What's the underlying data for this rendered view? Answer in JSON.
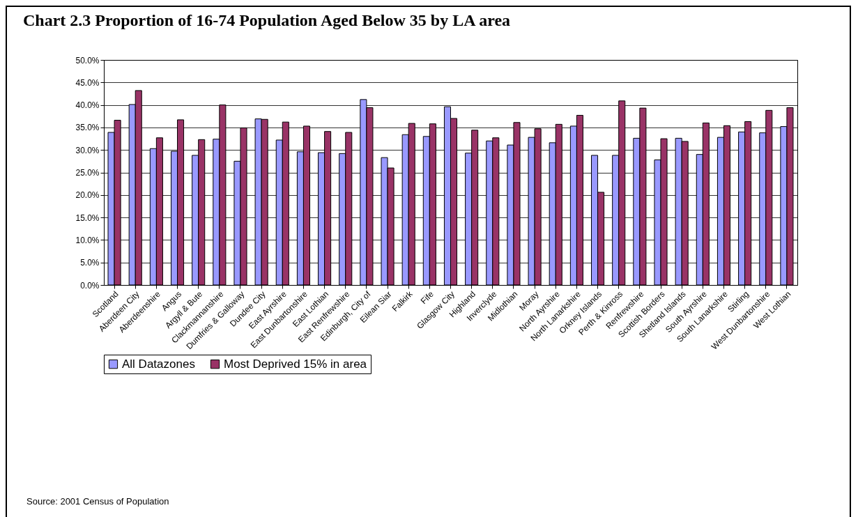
{
  "chart_data": {
    "type": "bar",
    "title": "Chart 2.3 Proportion of 16-74 Population Aged Below 35 by LA area",
    "categories": [
      "Scotland",
      "Aberdeen City",
      "Aberdeenshire",
      "Angus",
      "Argyll & Bute",
      "Clackmannanshire",
      "Dumfries & Galloway",
      "Dundee City",
      "East Ayrshire",
      "East Dunbartonshire",
      "East Lothian",
      "East Renfrewshire",
      "Edinburgh, City of",
      "Eilean Siar",
      "Falkirk",
      "Fife",
      "Glasgow City",
      "Highland",
      "Inverclyde",
      "Midlothian",
      "Moray",
      "North Ayrshire",
      "North Lanarkshire",
      "Orkney Islands",
      "Perth & Kinross",
      "Renfrewshire",
      "Scottish Borders",
      "Shetland Islands",
      "South Ayrshire",
      "South Lanarkshire",
      "Stirling",
      "West Dunbartonshire",
      "West Lothian"
    ],
    "series": [
      {
        "name": "All Datazones",
        "color": "#9999ff",
        "values": [
          33.9,
          40.1,
          30.3,
          29.7,
          28.8,
          32.4,
          27.5,
          36.9,
          32.2,
          29.6,
          29.4,
          29.2,
          41.2,
          28.3,
          33.4,
          33.0,
          39.6,
          29.3,
          32.0,
          31.1,
          32.8,
          31.6,
          35.3,
          28.8,
          28.8,
          32.6,
          27.8,
          32.6,
          29.0,
          32.8,
          34.0,
          33.8,
          35.2
        ]
      },
      {
        "name": "Most Deprived 15% in area",
        "color": "#993366",
        "values": [
          36.6,
          43.2,
          32.7,
          36.7,
          32.3,
          40.0,
          34.9,
          36.8,
          36.2,
          35.3,
          34.1,
          33.9,
          39.4,
          26.0,
          35.9,
          35.8,
          37.0,
          34.4,
          32.7,
          36.1,
          34.7,
          35.7,
          37.7,
          20.6,
          40.9,
          39.3,
          32.5,
          31.9,
          36.0,
          35.4,
          36.3,
          38.8,
          39.4
        ]
      }
    ],
    "ylim": [
      0,
      50
    ],
    "yticks": [
      {
        "value": 0,
        "label": "0.0%"
      },
      {
        "value": 5,
        "label": "5.0%"
      },
      {
        "value": 10,
        "label": "10.0%"
      },
      {
        "value": 15,
        "label": "15.0%"
      },
      {
        "value": 20,
        "label": "20.0%"
      },
      {
        "value": 25,
        "label": "25.0%"
      },
      {
        "value": 30,
        "label": "30.0%"
      },
      {
        "value": 35,
        "label": "35.0%"
      },
      {
        "value": 40,
        "label": "40.0%"
      },
      {
        "value": 45,
        "label": "45.0%"
      },
      {
        "value": 50,
        "label": "50.0%"
      }
    ],
    "grid": "y",
    "legend": "bottom",
    "annotations": [
      "Source: 2001 Census of Population"
    ]
  }
}
